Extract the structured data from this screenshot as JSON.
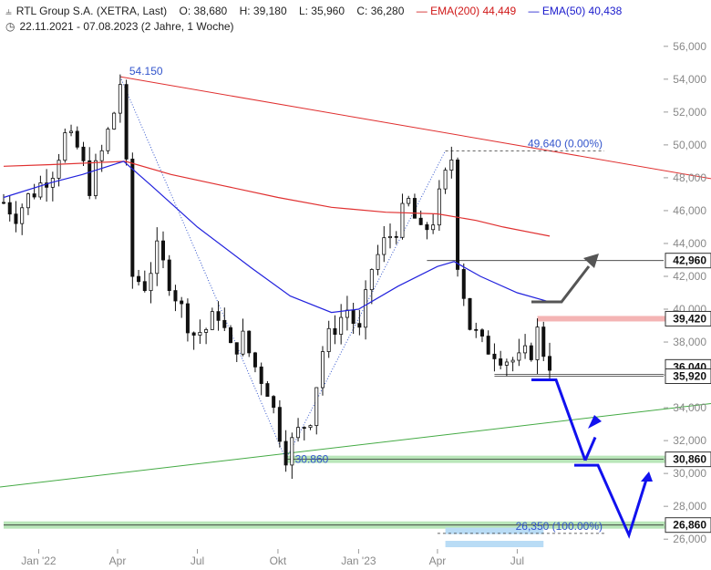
{
  "header": {
    "title": "RTL Group S.A. (XETRA, Last)",
    "ohlc": {
      "open": "O: 38,680",
      "high": "H: 39,180",
      "low": "L: 35,960",
      "close": "C: 36,280"
    },
    "ema200_label": "EMA(200)",
    "ema200_value": "44,449",
    "ema50_label": "EMA(50)",
    "ema50_value": "40,438",
    "period": "22.11.2021 - 07.08.2023",
    "span": "(2 Jahre, 1 Woche)",
    "chart_icon": "candlestick-icon",
    "clock_icon": "clock-icon"
  },
  "colors": {
    "candle": "#111111",
    "ema200": "#e03030",
    "ema50": "#2222dd",
    "trend_red": "#e03030",
    "trend_green": "#44aa44",
    "fib": "#3355cc",
    "support_zone": "#b9e6b9",
    "resistance_zone": "#f4b4b4",
    "target_zone": "#b9dcf5",
    "arrow_blue": "#1111ee",
    "arrow_grey": "#555555"
  },
  "chart_data": {
    "type": "candlestick",
    "y_axis": {
      "range": [
        25400,
        56600
      ],
      "ticks": [
        26000,
        28000,
        30000,
        32000,
        34000,
        36000,
        38000,
        40000,
        42000,
        44000,
        46000,
        48000,
        50000,
        52000,
        54000,
        56000
      ],
      "tick_labels": [
        "26,000",
        "28,000",
        "30,000",
        "32,000",
        "34,000",
        "36,000",
        "38,000",
        "40,000",
        "42,000",
        "44,000",
        "46,000",
        "48,000",
        "50,000",
        "52,000",
        "54,000",
        "56,000"
      ]
    },
    "x_axis": {
      "range": [
        "2021-11-22",
        "2023-08-07"
      ],
      "ticks": [
        {
          "date": "2022-01-01",
          "label": "Jan '22"
        },
        {
          "date": "2022-04-01",
          "label": "Apr"
        },
        {
          "date": "2022-07-01",
          "label": "Jul"
        },
        {
          "date": "2022-10-01",
          "label": "Okt"
        },
        {
          "date": "2023-01-01",
          "label": "Jan '23"
        },
        {
          "date": "2023-04-01",
          "label": "Apr"
        },
        {
          "date": "2023-07-01",
          "label": "Jul"
        }
      ]
    },
    "close_path": [
      [
        "2021-11-22",
        46500
      ],
      [
        "2021-12-06",
        45800
      ],
      [
        "2021-12-20",
        46800
      ],
      [
        "2022-01-03",
        47600
      ],
      [
        "2022-01-17",
        48500
      ],
      [
        "2022-01-31",
        50500
      ],
      [
        "2022-02-14",
        49800
      ],
      [
        "2022-02-28",
        47500
      ],
      [
        "2022-03-14",
        49500
      ],
      [
        "2022-03-28",
        52000
      ],
      [
        "2022-04-04",
        53800
      ],
      [
        "2022-04-11",
        48500
      ],
      [
        "2022-04-18",
        42000
      ],
      [
        "2022-05-02",
        41500
      ],
      [
        "2022-05-16",
        43500
      ],
      [
        "2022-05-30",
        41800
      ],
      [
        "2022-06-13",
        40000
      ],
      [
        "2022-06-27",
        38500
      ],
      [
        "2022-07-11",
        38800
      ],
      [
        "2022-07-25",
        39800
      ],
      [
        "2022-08-08",
        37500
      ],
      [
        "2022-08-22",
        38200
      ],
      [
        "2022-09-05",
        36500
      ],
      [
        "2022-09-19",
        35200
      ],
      [
        "2022-10-03",
        32500
      ],
      [
        "2022-10-10",
        31200
      ],
      [
        "2022-10-24",
        32500
      ],
      [
        "2022-11-07",
        33500
      ],
      [
        "2022-11-21",
        37500
      ],
      [
        "2022-12-05",
        39000
      ],
      [
        "2022-12-19",
        40000
      ],
      [
        "2023-01-02",
        38500
      ],
      [
        "2023-01-16",
        42500
      ],
      [
        "2023-01-30",
        44000
      ],
      [
        "2023-02-13",
        45000
      ],
      [
        "2023-02-27",
        46500
      ],
      [
        "2023-03-13",
        44500
      ],
      [
        "2023-03-27",
        45500
      ],
      [
        "2023-04-10",
        48000
      ],
      [
        "2023-04-17",
        49200
      ],
      [
        "2023-04-24",
        43000
      ],
      [
        "2023-05-08",
        39000
      ],
      [
        "2023-05-22",
        37800
      ],
      [
        "2023-06-05",
        37500
      ],
      [
        "2023-06-19",
        37000
      ],
      [
        "2023-07-03",
        36800
      ],
      [
        "2023-07-17",
        37500
      ],
      [
        "2023-07-24",
        38600
      ],
      [
        "2023-08-07",
        36280
      ]
    ],
    "ema200": [
      [
        "2021-11-22",
        48700
      ],
      [
        "2022-01-15",
        48800
      ],
      [
        "2022-04-10",
        49000
      ],
      [
        "2022-06-01",
        48200
      ],
      [
        "2022-08-01",
        47500
      ],
      [
        "2022-10-01",
        46800
      ],
      [
        "2022-12-01",
        46200
      ],
      [
        "2023-02-01",
        45900
      ],
      [
        "2023-04-01",
        45800
      ],
      [
        "2023-05-15",
        45400
      ],
      [
        "2023-06-15",
        45000
      ],
      [
        "2023-08-07",
        44449
      ]
    ],
    "ema50": [
      [
        "2021-11-22",
        46800
      ],
      [
        "2022-01-15",
        47700
      ],
      [
        "2022-02-20",
        48200
      ],
      [
        "2022-04-08",
        49000
      ],
      [
        "2022-05-10",
        47500
      ],
      [
        "2022-07-01",
        45000
      ],
      [
        "2022-09-01",
        42500
      ],
      [
        "2022-10-15",
        40800
      ],
      [
        "2022-12-01",
        39800
      ],
      [
        "2023-01-01",
        40000
      ],
      [
        "2023-02-15",
        41400
      ],
      [
        "2023-04-01",
        42600
      ],
      [
        "2023-04-20",
        42900
      ],
      [
        "2023-05-20",
        42000
      ],
      [
        "2023-07-01",
        41000
      ],
      [
        "2023-08-07",
        40438
      ]
    ],
    "annotations": {
      "high_label": {
        "date": "2022-04-04",
        "value": 54150,
        "text": "54.150"
      },
      "low_label": {
        "date": "2022-10-10",
        "value": 30860,
        "text": "30.860"
      },
      "fib_0": {
        "value": 49640,
        "text": "49,640 (0.00%)",
        "from": "2023-04-10",
        "to": "2023-08-07"
      },
      "fib_100": {
        "value": 26350,
        "text": "26,350 (100.00%)",
        "from": "2023-04-01",
        "to": "2023-08-07"
      },
      "fib_leg1": {
        "from": [
          "2022-04-04",
          54150
        ],
        "to": [
          "2022-10-10",
          30860
        ]
      },
      "fib_leg2": {
        "from": [
          "2022-10-10",
          30860
        ],
        "to": [
          "2023-04-10",
          49640
        ]
      },
      "red_trend": {
        "from": [
          "2022-04-04",
          54150
        ],
        "to": [
          "2023-08-07",
          49640
        ]
      },
      "green_trend": {
        "from": [
          "2021-11-22",
          29200
        ],
        "to": [
          "2023-08-07",
          33100
        ]
      },
      "levels": [
        {
          "value": 42960,
          "text": "42,960",
          "style": "line",
          "from": "2023-03-20"
        },
        {
          "value": 39420,
          "text": "39,420",
          "style": "red-zone",
          "from": "2023-07-24"
        },
        {
          "value": 36040,
          "text": "36,040",
          "style": "line",
          "from": "2023-06-05"
        },
        {
          "value": 35920,
          "text": "35,920",
          "style": "line",
          "from": "2023-06-05"
        },
        {
          "value": 30860,
          "text": "30,860",
          "style": "green-zone",
          "from": "2022-10-10"
        },
        {
          "value": 26860,
          "text": "26,860",
          "style": "green-zone",
          "from": "2021-11-22"
        }
      ]
    }
  }
}
